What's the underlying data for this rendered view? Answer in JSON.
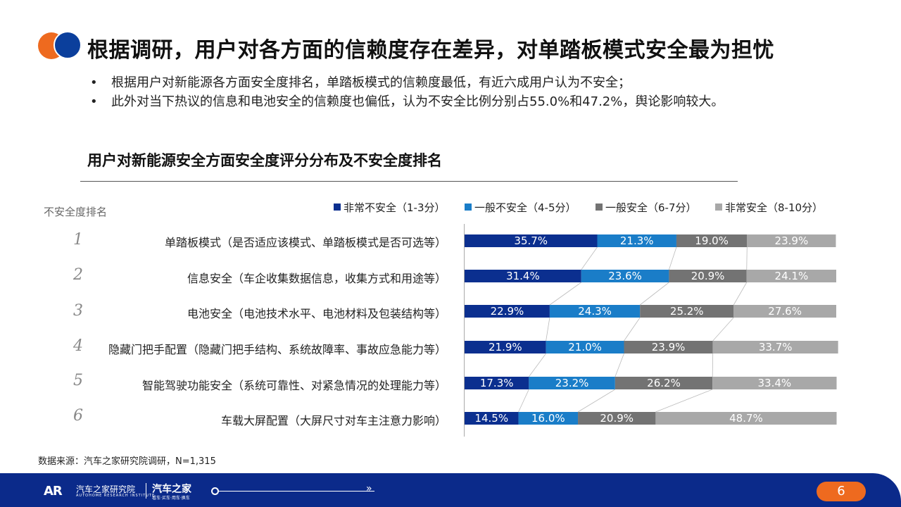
{
  "header": {
    "title": "根据调研，用户对各方面的信赖度存在差异，对单踏板模式安全最为担忧",
    "bullets": [
      "根据用户对新能源各方面安全度排名，单踏板模式的信赖度最低，有近六成用户认为不安全；",
      "此外对当下热议的信息和电池安全的信赖度也偏低，认为不安全比例分别占55.0%和47.2%，舆论影响较大。"
    ]
  },
  "chart_data": {
    "type": "bar",
    "orientation": "horizontal",
    "stacked": true,
    "title": "用户对新能源安全方面安全度评分分布及不安全度排名",
    "rank_header": "不安全度排名",
    "ranks": [
      "1",
      "2",
      "3",
      "4",
      "5",
      "6"
    ],
    "categories": [
      "单踏板模式（是否适应该模式、单踏板模式是否可选等）",
      "信息安全（车企收集数据信息，收集方式和用途等）",
      "电池安全（电池技术水平、电池材料及包装结构等）",
      "隐藏门把手配置（隐藏门把手结构、系统故障率、事故应急能力等）",
      "智能驾驶功能安全（系统可靠性、对紧急情况的处理能力等）",
      "车载大屏配置（大屏尺寸对车主注意力影响）"
    ],
    "series": [
      {
        "name": "非常不安全（1-3分）",
        "color": "#0b2f8f",
        "values": [
          35.7,
          31.4,
          22.9,
          21.9,
          17.3,
          14.5
        ]
      },
      {
        "name": "一般不安全（4-5分）",
        "color": "#1a7dc8",
        "values": [
          21.3,
          23.6,
          24.3,
          21.0,
          23.2,
          16.0
        ]
      },
      {
        "name": "一般安全（6-7分）",
        "color": "#737373",
        "values": [
          19.0,
          20.9,
          25.2,
          23.9,
          26.2,
          20.9
        ]
      },
      {
        "name": "非常安全（8-10分）",
        "color": "#a8a8a8",
        "values": [
          23.9,
          24.1,
          27.6,
          33.7,
          33.4,
          48.7
        ]
      }
    ],
    "value_suffix": "%",
    "xlim": [
      0,
      100
    ],
    "legend": "top"
  },
  "footer": {
    "source": "数据来源：汽车之家研究院调研，N=1,315",
    "institute_mark": "AR",
    "institute_name": "汽车之家研究院",
    "institute_sub": "AUTOHOME RESEARCH INSTITUTE",
    "brand": "汽车之家",
    "brand_sub": "看车·买车·用车·换车",
    "page_number": "6"
  }
}
